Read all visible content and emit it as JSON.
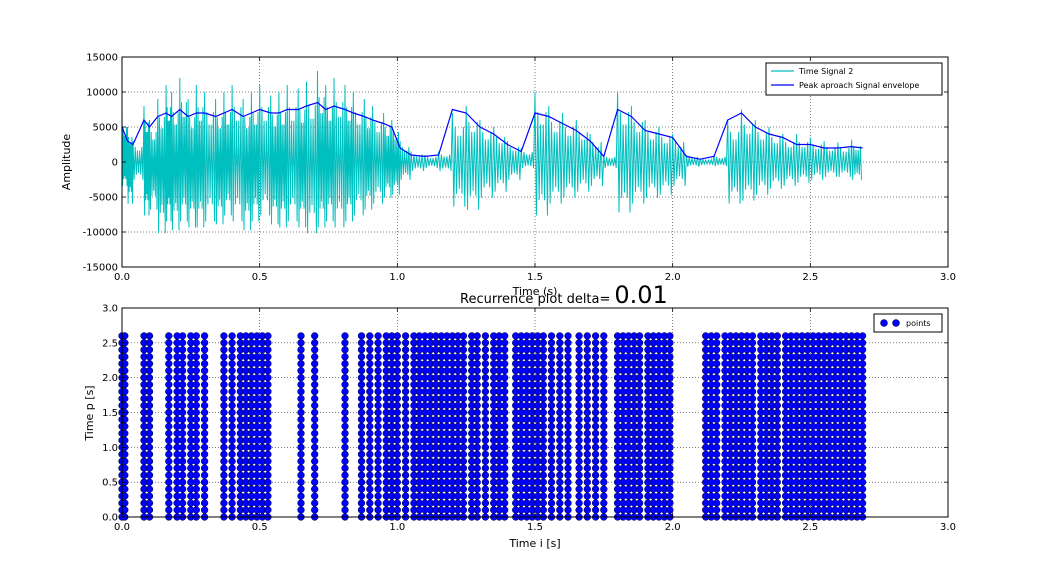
{
  "chart_data": [
    {
      "type": "line",
      "title": "",
      "xlabel": "Time (s)",
      "ylabel": "Amplitude",
      "xlim": [
        0.0,
        3.0
      ],
      "ylim": [
        -15000,
        15000
      ],
      "xticks": [
        "0.0",
        "0.5",
        "1.0",
        "1.5",
        "2.0",
        "2.5",
        "3.0"
      ],
      "yticks": [
        "-15000",
        "-10000",
        "-5000",
        "0",
        "5000",
        "10000",
        "15000"
      ],
      "grid": true,
      "legend_position": "top-right",
      "series": [
        {
          "name": "Time Signal 2",
          "color": "#00bfbf",
          "description_points": {
            "x": [
              0.0,
              0.02,
              0.04,
              0.08,
              0.1,
              0.13,
              0.16,
              0.18,
              0.21,
              0.24,
              0.27,
              0.3,
              0.34,
              0.37,
              0.4,
              0.44,
              0.47,
              0.5,
              0.54,
              0.57,
              0.6,
              0.64,
              0.67,
              0.71,
              0.74,
              0.77,
              0.81,
              0.84,
              0.88,
              0.91,
              0.95,
              0.98,
              1.01,
              1.05,
              1.1,
              1.15,
              1.2,
              1.25,
              1.3,
              1.35,
              1.4,
              1.45,
              1.5,
              1.55,
              1.6,
              1.65,
              1.7,
              1.75,
              1.8,
              1.85,
              1.9,
              1.95,
              2.0,
              2.05,
              2.1,
              2.15,
              2.2,
              2.25,
              2.3,
              2.35,
              2.4,
              2.45,
              2.5,
              2.55,
              2.6,
              2.65,
              2.69
            ],
            "y_max": [
              7000,
              5000,
              3000,
              8000,
              6000,
              9000,
              11000,
              10000,
              12000,
              9000,
              11000,
              10000,
              9000,
              10000,
              11000,
              9000,
              10000,
              11000,
              9500,
              10000,
              11000,
              10500,
              11500,
              13000,
              11000,
              12000,
              11000,
              10000,
              9000,
              8000,
              7000,
              6000,
              3000,
              1500,
              1000,
              1500,
              7000,
              8000,
              6000,
              5000,
              3000,
              2000,
              10000,
              8000,
              7000,
              6000,
              4000,
              1000,
              10000,
              8000,
              6000,
              5000,
              4000,
              1000,
              500,
              1000,
              6000,
              7500,
              6000,
              5000,
              4000,
              4000,
              3500,
              3000,
              2800,
              3200,
              3000
            ],
            "y_min": [
              -4000,
              -7000,
              -3000,
              -9000,
              -8000,
              -12000,
              -10000,
              -11500,
              -10000,
              -11000,
              -11000,
              -10000,
              -10500,
              -9000,
              -10000,
              -11500,
              -10000,
              -9000,
              -10500,
              -11000,
              -10000,
              -11000,
              -12000,
              -11000,
              -10000,
              -11000,
              -10000,
              -9000,
              -8000,
              -7000,
              -6000,
              -5500,
              -3000,
              -1500,
              -1000,
              -1500,
              -7500,
              -8000,
              -6000,
              -5000,
              -3000,
              -1000,
              -9000,
              -7000,
              -6000,
              -5000,
              -4000,
              -1000,
              -8500,
              -7000,
              -6000,
              -5500,
              -4000,
              -800,
              -500,
              -700,
              -7000,
              -6500,
              -5500,
              -4500,
              -4000,
              -3500,
              -3000,
              -2500,
              -2500,
              -3000,
              -3000
            ]
          }
        },
        {
          "name": "Peak aproach Signal envelope",
          "color": "#0000ff",
          "x": [
            0.0,
            0.02,
            0.04,
            0.08,
            0.1,
            0.13,
            0.16,
            0.18,
            0.21,
            0.24,
            0.27,
            0.3,
            0.34,
            0.37,
            0.4,
            0.44,
            0.47,
            0.5,
            0.54,
            0.57,
            0.6,
            0.64,
            0.67,
            0.71,
            0.74,
            0.77,
            0.81,
            0.84,
            0.88,
            0.91,
            0.95,
            0.98,
            1.01,
            1.05,
            1.1,
            1.15,
            1.2,
            1.25,
            1.3,
            1.35,
            1.4,
            1.45,
            1.5,
            1.55,
            1.6,
            1.65,
            1.7,
            1.75,
            1.8,
            1.85,
            1.9,
            1.95,
            2.0,
            2.05,
            2.1,
            2.15,
            2.2,
            2.25,
            2.3,
            2.35,
            2.4,
            2.45,
            2.5,
            2.55,
            2.6,
            2.65,
            2.69
          ],
          "y": [
            5000,
            3000,
            2500,
            6000,
            5000,
            6500,
            7000,
            6500,
            7500,
            6500,
            7000,
            7000,
            6500,
            7000,
            7500,
            6500,
            7000,
            7500,
            7000,
            7000,
            7500,
            7500,
            8000,
            8500,
            7500,
            8000,
            7500,
            7000,
            6500,
            6000,
            5500,
            5000,
            2000,
            1000,
            800,
            1000,
            7500,
            7000,
            5000,
            4000,
            2500,
            1500,
            7000,
            6500,
            5500,
            4500,
            3000,
            800,
            7500,
            6500,
            4500,
            4000,
            3500,
            800,
            400,
            800,
            6000,
            7000,
            5000,
            4000,
            3500,
            2500,
            2500,
            2000,
            2000,
            2200,
            2000
          ]
        }
      ]
    },
    {
      "type": "scatter",
      "title": "Recurrence plot delta=",
      "title_value": "0.01",
      "xlabel": "Time i [s]",
      "ylabel": "Time p [s]",
      "xlim": [
        0.0,
        3.0
      ],
      "ylim": [
        0.0,
        3.0
      ],
      "xticks": [
        "0.0",
        "0.5",
        "1.0",
        "1.5",
        "2.0",
        "2.5",
        "3.0"
      ],
      "yticks": [
        "0.0",
        "0.5",
        "1.0",
        "1.5",
        "2.0",
        "2.5",
        "3.0"
      ],
      "grid": true,
      "legend_position": "top-right",
      "series": [
        {
          "name": "points",
          "color": "#0000ff",
          "x_columns": [
            0.0,
            0.01,
            0.08,
            0.1,
            0.17,
            0.2,
            0.22,
            0.25,
            0.27,
            0.3,
            0.37,
            0.4,
            0.43,
            0.45,
            0.47,
            0.49,
            0.51,
            0.53,
            0.65,
            0.7,
            0.81,
            0.87,
            0.9,
            0.93,
            0.96,
            0.98,
            1.0,
            1.03,
            1.06,
            1.08,
            1.1,
            1.12,
            1.14,
            1.16,
            1.18,
            1.2,
            1.22,
            1.24,
            1.27,
            1.29,
            1.32,
            1.35,
            1.37,
            1.39,
            1.43,
            1.45,
            1.47,
            1.49,
            1.51,
            1.53,
            1.56,
            1.59,
            1.62,
            1.66,
            1.69,
            1.72,
            1.75,
            1.8,
            1.82,
            1.84,
            1.86,
            1.88,
            1.91,
            1.93,
            1.95,
            1.97,
            1.99,
            2.12,
            2.14,
            2.16,
            2.19,
            2.21,
            2.23,
            2.25,
            2.27,
            2.29,
            2.32,
            2.34,
            2.36,
            2.38,
            2.41,
            2.43,
            2.45,
            2.47,
            2.49,
            2.51,
            2.53,
            2.55,
            2.57,
            2.59,
            2.61,
            2.63,
            2.65,
            2.67,
            2.69
          ],
          "y_range": [
            0.0,
            2.6
          ],
          "y_step": 0.1
        }
      ]
    }
  ]
}
